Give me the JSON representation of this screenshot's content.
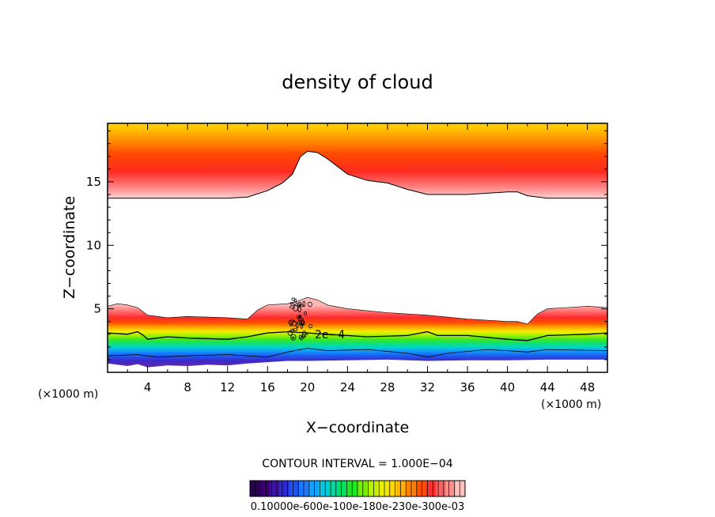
{
  "chart_data": {
    "type": "heatmap",
    "title": "density of cloud",
    "xlabel": "X−coordinate",
    "ylabel": "Z−coordinate",
    "x_unit_left": "(×1000 m)",
    "x_unit_right": "(×1000 m)",
    "xlim": [
      0,
      50
    ],
    "ylim": [
      0,
      19.6
    ],
    "x_ticks": [
      4,
      8,
      12,
      16,
      20,
      24,
      28,
      32,
      36,
      40,
      44,
      48
    ],
    "y_ticks": [
      5,
      10,
      15
    ],
    "contour_interval_text": "CONTOUR INTERVAL = 1.000E−04",
    "contour_label": "2e−4",
    "colorbar_label_text": "0.10000e-600e-100e-180e-230e-300e-03",
    "colorbar_colors": [
      "#2a0050",
      "#3a0070",
      "#3c14a0",
      "#2a2ad0",
      "#1e50f0",
      "#1e78ff",
      "#10a0ff",
      "#00c8e0",
      "#00d8a0",
      "#00e060",
      "#20e820",
      "#70f000",
      "#b8f000",
      "#e8f000",
      "#ffd800",
      "#ffb000",
      "#ff8000",
      "#ff5000",
      "#ff3030",
      "#ff6060",
      "#ff9090",
      "#ffc0c0"
    ],
    "upper_layer": {
      "base": [
        [
          0,
          13.7
        ],
        [
          4,
          13.7
        ],
        [
          8,
          13.7
        ],
        [
          12,
          13.7
        ],
        [
          14,
          13.8
        ],
        [
          16,
          14.3
        ],
        [
          17.5,
          14.9
        ],
        [
          18.5,
          15.6
        ],
        [
          19.3,
          17.0
        ],
        [
          20,
          17.4
        ],
        [
          21,
          17.3
        ],
        [
          22,
          16.8
        ],
        [
          24,
          15.6
        ],
        [
          26,
          15.1
        ],
        [
          28,
          14.9
        ],
        [
          30,
          14.4
        ],
        [
          32,
          14.0
        ],
        [
          36,
          14.0
        ],
        [
          40,
          14.2
        ],
        [
          41,
          14.2
        ],
        [
          42,
          13.9
        ],
        [
          44,
          13.7
        ],
        [
          50,
          13.7
        ]
      ],
      "gradient": [
        {
          "z": 13.7,
          "color": "#ffd0d0"
        },
        {
          "z": 14.6,
          "color": "#ff8080"
        },
        {
          "z": 15.8,
          "color": "#ff2a20"
        },
        {
          "z": 17.2,
          "color": "#ff4a00"
        },
        {
          "z": 18.2,
          "color": "#ff8a00"
        },
        {
          "z": 19.2,
          "color": "#ffc400"
        },
        {
          "z": 19.6,
          "color": "#ffd400"
        }
      ]
    },
    "lower_layer": {
      "top": [
        [
          0,
          5.2
        ],
        [
          1,
          5.4
        ],
        [
          2,
          5.3
        ],
        [
          3,
          5.1
        ],
        [
          4,
          4.5
        ],
        [
          6,
          4.3
        ],
        [
          8,
          4.4
        ],
        [
          12,
          4.3
        ],
        [
          14,
          4.2
        ],
        [
          15,
          4.9
        ],
        [
          16,
          5.3
        ],
        [
          18,
          5.4
        ],
        [
          19,
          5.6
        ],
        [
          20,
          5.9
        ],
        [
          21,
          5.7
        ],
        [
          22,
          5.3
        ],
        [
          24,
          5.0
        ],
        [
          28,
          4.7
        ],
        [
          32,
          4.5
        ],
        [
          36,
          4.2
        ],
        [
          40,
          4.0
        ],
        [
          41,
          4.0
        ],
        [
          42,
          3.8
        ],
        [
          43,
          4.6
        ],
        [
          44,
          5.0
        ],
        [
          46,
          5.1
        ],
        [
          48,
          5.2
        ],
        [
          50,
          5.1
        ]
      ],
      "bottom_profile": [
        [
          0,
          0.7
        ],
        [
          2,
          0.5
        ],
        [
          3,
          0.65
        ],
        [
          4,
          0.4
        ],
        [
          6,
          0.55
        ],
        [
          8,
          0.5
        ],
        [
          10,
          0.6
        ],
        [
          12,
          0.55
        ],
        [
          14,
          0.7
        ],
        [
          16,
          0.8
        ],
        [
          18,
          0.9
        ],
        [
          20,
          0.9
        ],
        [
          24,
          0.95
        ],
        [
          28,
          1.0
        ],
        [
          32,
          0.9
        ],
        [
          36,
          0.95
        ],
        [
          40,
          0.95
        ],
        [
          44,
          1.0
        ],
        [
          48,
          1.0
        ],
        [
          50,
          1.0
        ]
      ],
      "color_scale": [
        {
          "z": 0.4,
          "color": "#6a2aa8"
        },
        {
          "z": 0.9,
          "color": "#3c28c8"
        },
        {
          "z": 1.3,
          "color": "#1e5af0"
        },
        {
          "z": 1.7,
          "color": "#10a0ff"
        },
        {
          "z": 2.0,
          "color": "#00d8c0"
        },
        {
          "z": 2.3,
          "color": "#10e070"
        },
        {
          "z": 2.6,
          "color": "#40e820"
        },
        {
          "z": 2.9,
          "color": "#a0f000"
        },
        {
          "z": 3.2,
          "color": "#f0f000"
        },
        {
          "z": 3.5,
          "color": "#ffb000"
        },
        {
          "z": 3.9,
          "color": "#ff5000"
        },
        {
          "z": 4.3,
          "color": "#ff2a2a"
        },
        {
          "z": 4.8,
          "color": "#ff7070"
        },
        {
          "z": 5.3,
          "color": "#ffb8b8"
        }
      ],
      "contour_main": [
        [
          0,
          3.1
        ],
        [
          2,
          3.0
        ],
        [
          3,
          3.2
        ],
        [
          3.6,
          2.9
        ],
        [
          4,
          2.6
        ],
        [
          6,
          2.8
        ],
        [
          8,
          2.7
        ],
        [
          12,
          2.6
        ],
        [
          14,
          2.8
        ],
        [
          16,
          3.1
        ],
        [
          18,
          3.2
        ],
        [
          20,
          3.1
        ],
        [
          22,
          3.0
        ],
        [
          26,
          2.8
        ],
        [
          30,
          2.9
        ],
        [
          32,
          3.2
        ],
        [
          33,
          2.9
        ],
        [
          36,
          2.9
        ],
        [
          40,
          2.6
        ],
        [
          42,
          2.5
        ],
        [
          44,
          2.9
        ],
        [
          48,
          3.0
        ],
        [
          50,
          3.1
        ]
      ],
      "contour_low": [
        [
          0,
          1.3
        ],
        [
          3,
          1.4
        ],
        [
          5,
          1.2
        ],
        [
          8,
          1.3
        ],
        [
          12,
          1.4
        ],
        [
          14,
          1.3
        ],
        [
          16,
          1.2
        ],
        [
          18,
          1.6
        ],
        [
          20,
          1.9
        ],
        [
          22,
          1.7
        ],
        [
          26,
          1.8
        ],
        [
          30,
          1.5
        ],
        [
          32,
          1.2
        ],
        [
          34,
          1.5
        ],
        [
          38,
          1.8
        ],
        [
          42,
          1.6
        ],
        [
          44,
          1.8
        ],
        [
          50,
          1.7
        ]
      ]
    }
  }
}
